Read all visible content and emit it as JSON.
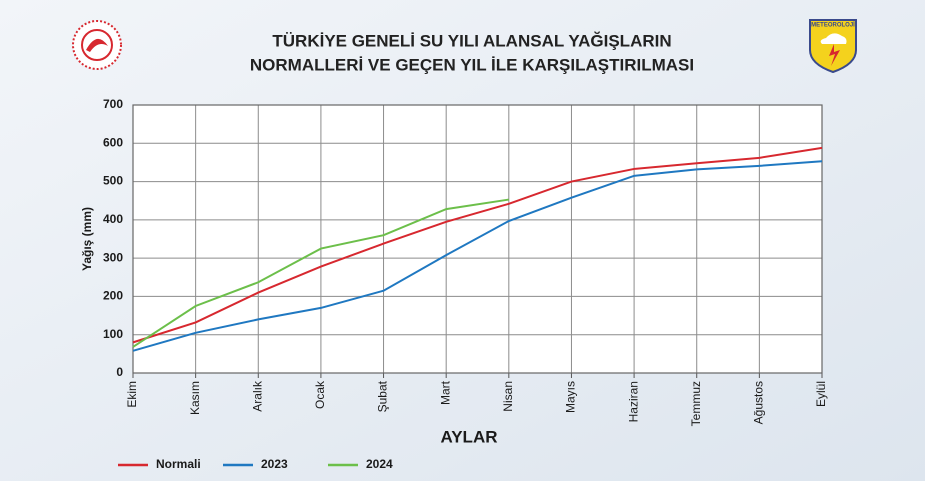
{
  "chart_data": {
    "type": "line",
    "title_lines": [
      "TÜRKİYE GENELİ SU YILI ALANSAL YAĞIŞLARIN",
      "NORMALLERİ VE GEÇEN YIL İLE KARŞILAŞTIRILMASI"
    ],
    "logo_text": "METEOROLOJİ",
    "x_label": "AYLAR",
    "y_label": "Yağış (mm)",
    "categories": [
      "Ekim",
      "Kasım",
      "Aralık",
      "Ocak",
      "Şubat",
      "Mart",
      "Nisan",
      "Mayıs",
      "Haziran",
      "Temmuz",
      "Ağustos",
      "Eylül"
    ],
    "series": [
      {
        "name": "Normali",
        "color": "#d7282f",
        "values": [
          80,
          132,
          210,
          278,
          338,
          395,
          442,
          500,
          533,
          548,
          562,
          588
        ]
      },
      {
        "name": "2023",
        "color": "#1f78c1",
        "values": [
          58,
          105,
          140,
          170,
          215,
          308,
          397,
          458,
          515,
          532,
          541,
          553
        ]
      },
      {
        "name": "2024",
        "color": "#6cbf4a",
        "values": [
          68,
          175,
          237,
          325,
          360,
          428,
          453,
          null,
          null,
          null,
          null,
          null
        ]
      }
    ],
    "ylim": [
      0,
      700
    ],
    "yticks": [
      0,
      100,
      200,
      300,
      400,
      500,
      600,
      700
    ],
    "grid": true,
    "legend": "bottom-left"
  }
}
